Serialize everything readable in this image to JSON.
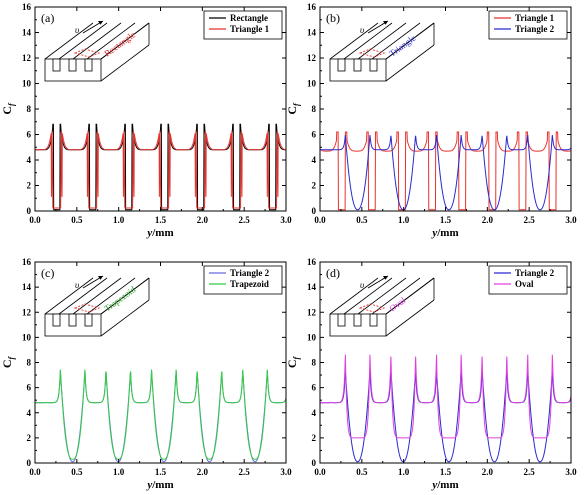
{
  "chart_data": [
    {
      "panel": "(a)",
      "type": "line",
      "xlabel": "y/mm",
      "ylabel": "Cf",
      "xlim": [
        0,
        3.0
      ],
      "ylim": [
        0,
        16
      ],
      "xticks": [
        "0.0",
        "0.5",
        "1.0",
        "1.5",
        "2.0",
        "2.5",
        "3.0"
      ],
      "yticks": [
        "0",
        "2",
        "4",
        "6",
        "8",
        "10",
        "12",
        "14",
        "16"
      ],
      "inset_label": "Rectangle",
      "inset_label_color": "#d62728",
      "legend_position": "top-right",
      "period_mm": 0.43,
      "series": [
        {
          "name": "Rectangle",
          "color": "#000000",
          "profile": "rectangle",
          "baseline": 4.8,
          "valley_min": 0.1,
          "peak_max": 6.8
        },
        {
          "name": "Triangle 1",
          "color": "#e8322c",
          "profile": "triangle_deep",
          "baseline": 4.8,
          "valley_min": 0.1,
          "peak_max": 6.8
        }
      ]
    },
    {
      "panel": "(b)",
      "type": "line",
      "xlabel": "y/mm",
      "ylabel": "Cf",
      "xlim": [
        0,
        3.0
      ],
      "ylim": [
        0,
        16
      ],
      "xticks": [
        "0.0",
        "0.5",
        "1.0",
        "1.5",
        "2.0",
        "2.5",
        "3.0"
      ],
      "yticks": [
        "0",
        "2",
        "4",
        "6",
        "8",
        "10",
        "12",
        "14",
        "16"
      ],
      "inset_label": "Triangle",
      "inset_label_color": "#3030d0",
      "legend_position": "top-right",
      "series": [
        {
          "name": "Triangle 1",
          "color": "#e8322c",
          "profile": "triangle_narrow",
          "period_mm": 0.36,
          "baseline": 4.7,
          "valley_min": 0.1,
          "peak_max": 6.2
        },
        {
          "name": "Triangle 2",
          "color": "#2a2ad0",
          "profile": "u_valley",
          "period_mm": 0.545,
          "baseline": 4.8,
          "valley_min": 0.1,
          "peak_max": 6.0
        }
      ]
    },
    {
      "panel": "(c)",
      "type": "line",
      "xlabel": "y/mm",
      "ylabel": "Cf",
      "xlim": [
        0,
        3.0
      ],
      "ylim": [
        0,
        16
      ],
      "xticks": [
        "0.0",
        "0.5",
        "1.0",
        "1.5",
        "2.0",
        "2.5",
        "3.0"
      ],
      "yticks": [
        "0",
        "2",
        "4",
        "6",
        "8",
        "10",
        "12",
        "14",
        "16"
      ],
      "inset_label": "Trapezoid",
      "inset_label_color": "#2ca02c",
      "legend_position": "top-right",
      "period_mm": 0.545,
      "series": [
        {
          "name": "Triangle 2",
          "color": "#6a6ae0",
          "profile": "u_valley",
          "baseline": 4.8,
          "valley_min": 0.1,
          "peak_max": 7.4
        },
        {
          "name": "Trapezoid",
          "color": "#33cc44",
          "profile": "u_valley_flat",
          "baseline": 4.8,
          "valley_min": 0.3,
          "peak_max": 7.5
        }
      ]
    },
    {
      "panel": "(d)",
      "type": "line",
      "xlabel": "y/mm",
      "ylabel": "Cf",
      "xlim": [
        0,
        3.0
      ],
      "ylim": [
        0,
        16
      ],
      "xticks": [
        "0.0",
        "0.5",
        "1.0",
        "1.5",
        "2.0",
        "2.5",
        "3.0"
      ],
      "yticks": [
        "0",
        "2",
        "4",
        "6",
        "8",
        "10",
        "12",
        "14",
        "16"
      ],
      "inset_label": "Oval",
      "inset_label_color": "#d030d0",
      "legend_position": "top-right",
      "period_mm": 0.545,
      "series": [
        {
          "name": "Triangle 2",
          "color": "#2a2ad0",
          "profile": "u_valley",
          "baseline": 4.8,
          "valley_min": 0.1,
          "peak_max": 7.4
        },
        {
          "name": "Oval",
          "color": "#e040e0",
          "profile": "oval",
          "baseline": 4.8,
          "valley_min": 2.0,
          "peak_max": 8.8
        }
      ]
    }
  ],
  "inset_icons": {
    "flow_arrow_label": "υ"
  }
}
